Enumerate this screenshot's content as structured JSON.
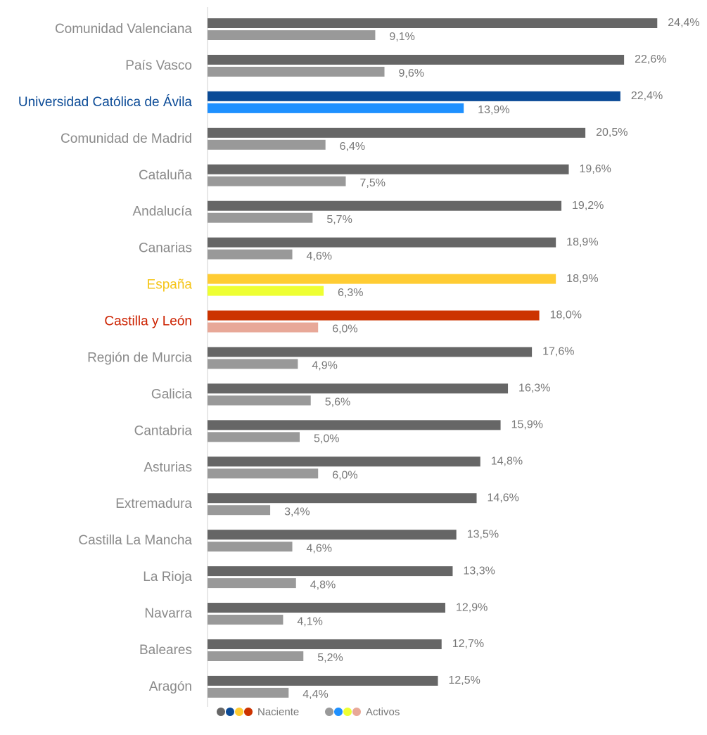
{
  "chart_data": {
    "type": "hbar",
    "categories": [
      "Comunidad Valenciana",
      "País Vasco",
      "Universidad Católica de Ávila",
      "Comunidad de Madrid",
      "Cataluña",
      "Andalucía",
      "Canarias",
      "España",
      "Castilla y León",
      "Región de Murcia",
      "Galicia",
      "Cantabria",
      "Asturias",
      "Extremadura",
      "Castilla La Mancha",
      "La Rioja",
      "Navarra",
      "Baleares",
      "Aragón"
    ],
    "category_colors": [
      "#8a8a8a",
      "#8a8a8a",
      "#0a4a96",
      "#8a8a8a",
      "#8a8a8a",
      "#8a8a8a",
      "#8a8a8a",
      "#f5c518",
      "#cc2200",
      "#8a8a8a",
      "#8a8a8a",
      "#8a8a8a",
      "#8a8a8a",
      "#8a8a8a",
      "#8a8a8a",
      "#8a8a8a",
      "#8a8a8a",
      "#8a8a8a",
      "#8a8a8a"
    ],
    "xlim": [
      0,
      25
    ],
    "series": [
      {
        "name": "Naciente",
        "colors": [
          "#666666",
          "#666666",
          "#0a4a96",
          "#666666",
          "#666666",
          "#666666",
          "#666666",
          "#ffcc33",
          "#cc3300",
          "#666666",
          "#666666",
          "#666666",
          "#666666",
          "#666666",
          "#666666",
          "#666666",
          "#666666",
          "#666666",
          "#666666"
        ],
        "values": [
          24.4,
          22.6,
          22.4,
          20.5,
          19.6,
          19.2,
          18.9,
          18.9,
          18.0,
          17.6,
          16.3,
          15.9,
          14.8,
          14.6,
          13.5,
          13.3,
          12.9,
          12.7,
          12.5
        ],
        "value_labels": [
          "24,4%",
          "22,6%",
          "22,4%",
          "20,5%",
          "19,6%",
          "19,2%",
          "18,9%",
          "18,9%",
          "18,0%",
          "17,6%",
          "16,3%",
          "15,9%",
          "14,8%",
          "14,6%",
          "13,5%",
          "13,3%",
          "12,9%",
          "12,7%",
          "12,5%"
        ]
      },
      {
        "name": "Activos",
        "colors": [
          "#999999",
          "#999999",
          "#1e90ff",
          "#999999",
          "#999999",
          "#999999",
          "#999999",
          "#eeff33",
          "#e8a898",
          "#999999",
          "#999999",
          "#999999",
          "#999999",
          "#999999",
          "#999999",
          "#999999",
          "#999999",
          "#999999",
          "#999999"
        ],
        "values": [
          9.1,
          9.6,
          13.9,
          6.4,
          7.5,
          5.7,
          4.6,
          6.3,
          6.0,
          4.9,
          5.6,
          5.0,
          6.0,
          3.4,
          4.6,
          4.8,
          4.1,
          5.2,
          4.4
        ],
        "value_labels": [
          "9,1%",
          "9,6%",
          "13,9%",
          "6,4%",
          "7,5%",
          "5,7%",
          "4,6%",
          "6,3%",
          "6,0%",
          "4,9%",
          "5,6%",
          "5,0%",
          "6,0%",
          "3,4%",
          "4,6%",
          "4,8%",
          "4,1%",
          "5,2%",
          "4,4%"
        ]
      }
    ]
  }
}
